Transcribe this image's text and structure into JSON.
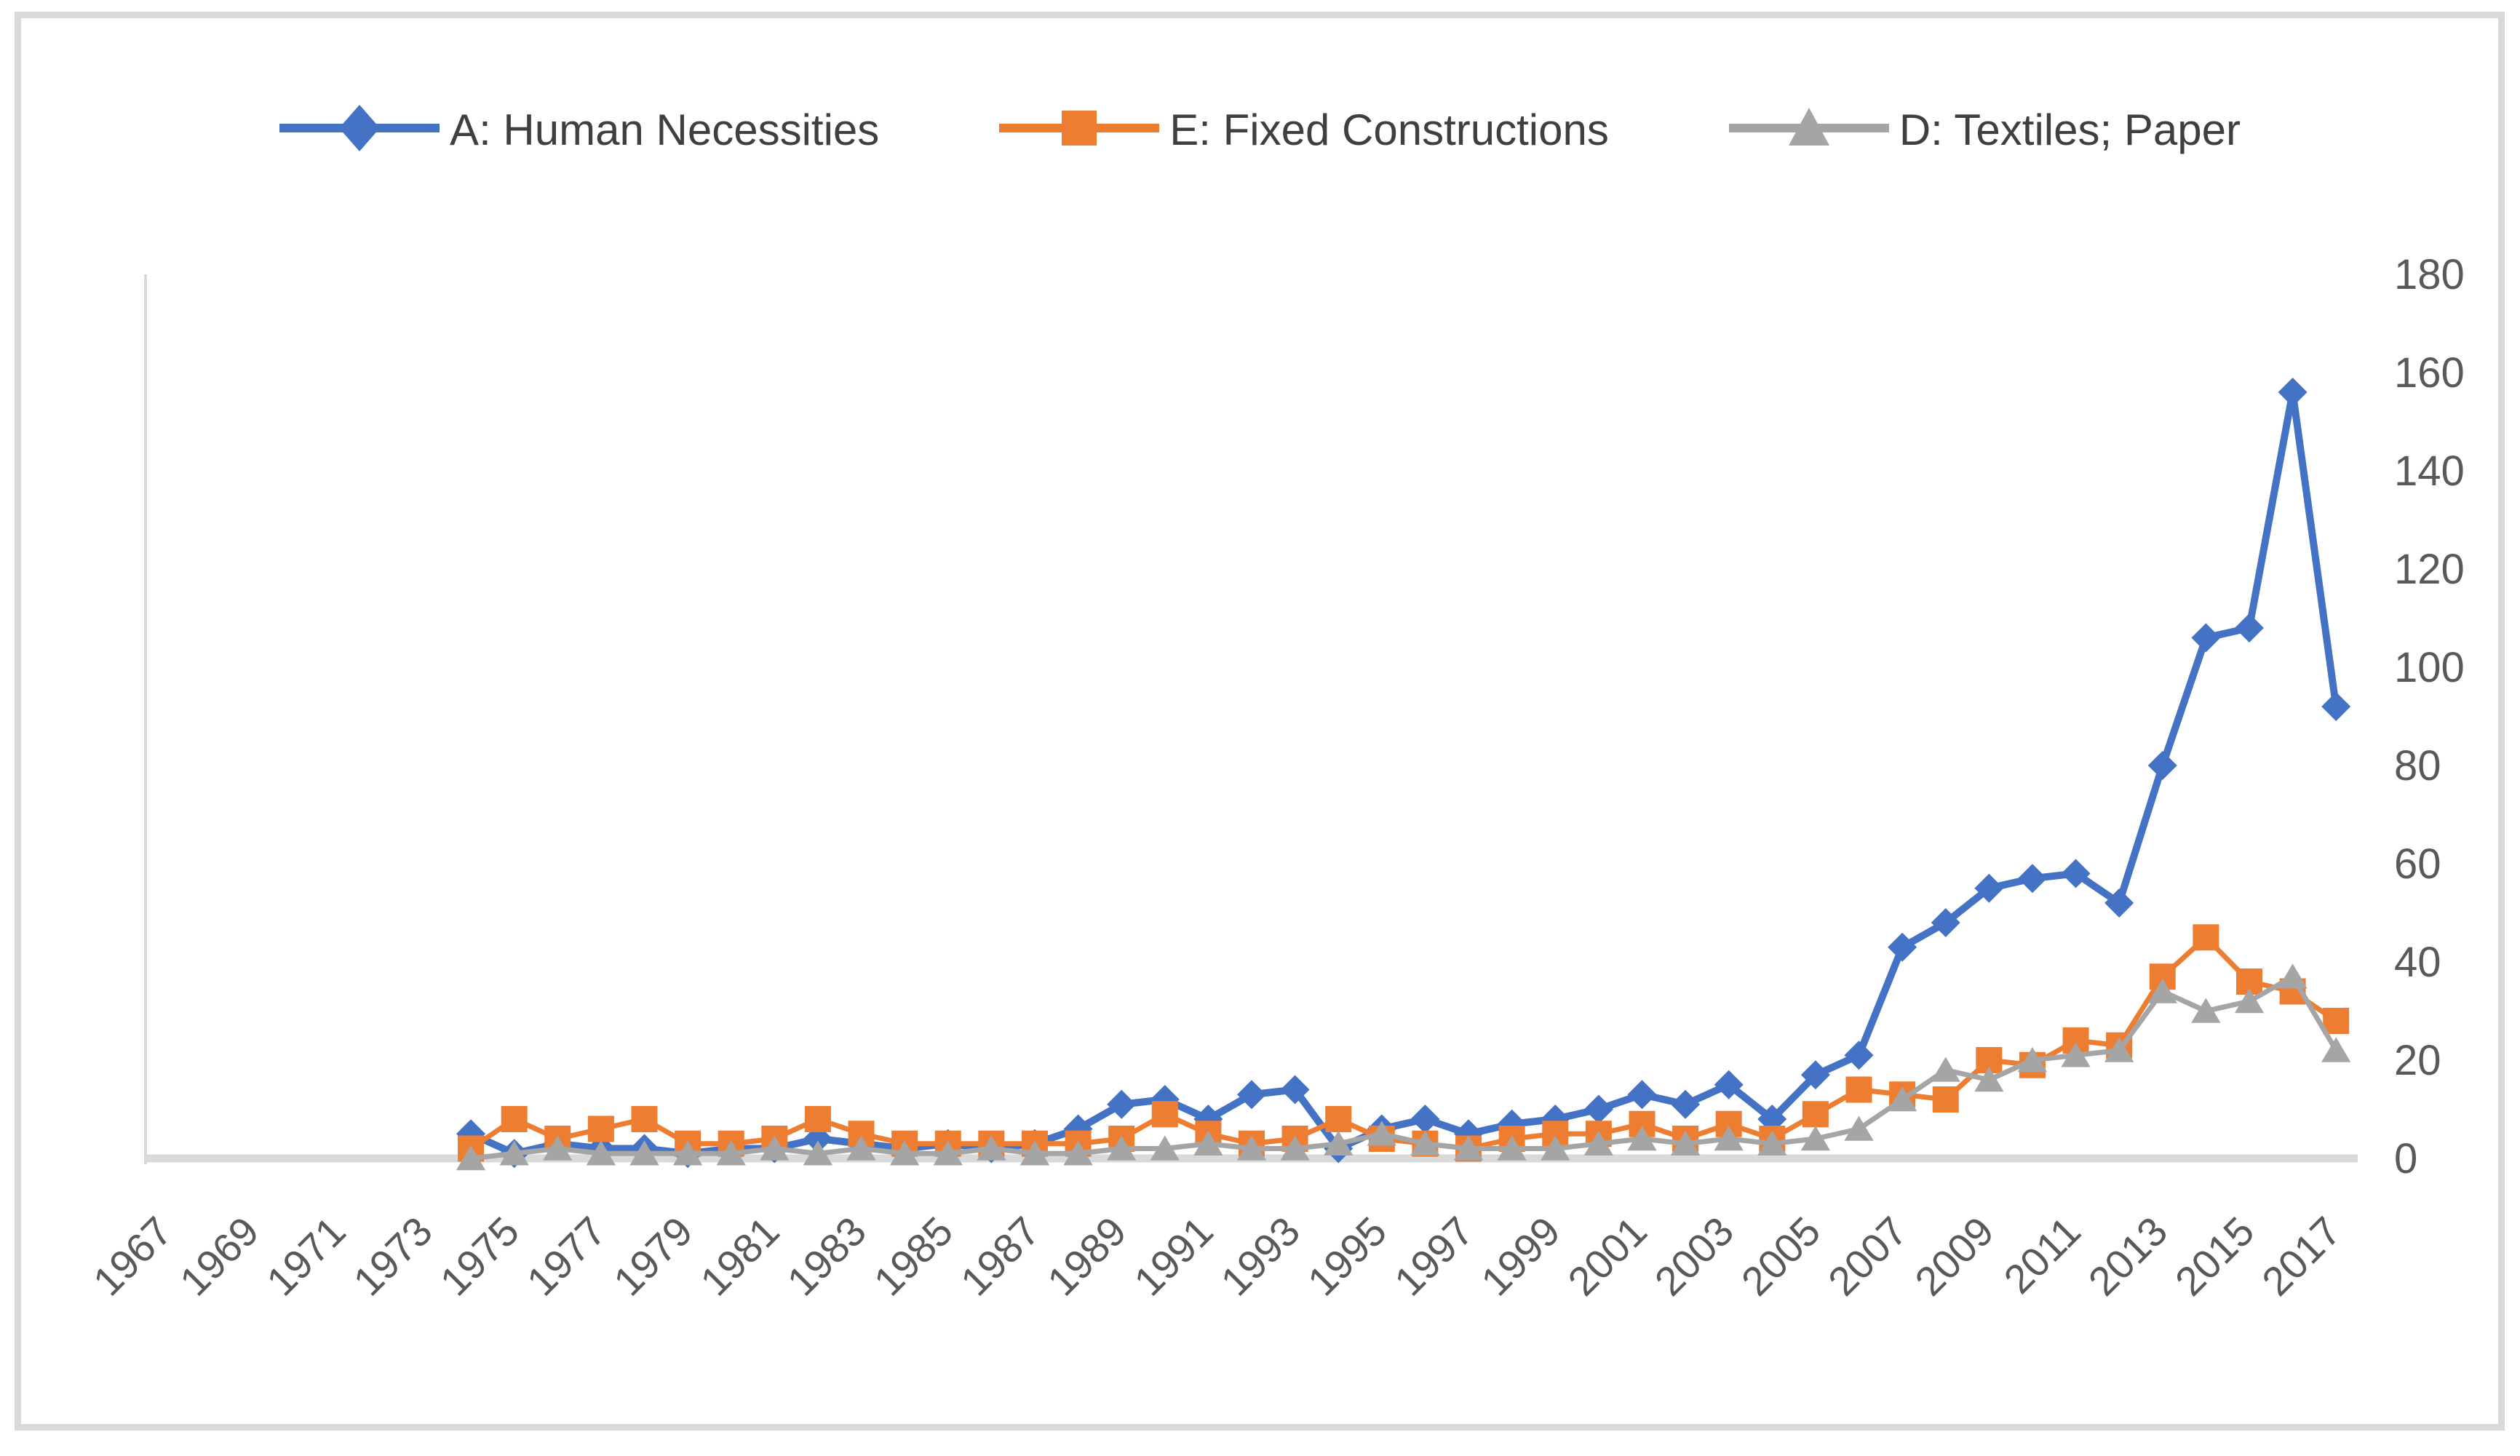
{
  "chart_data": {
    "type": "line",
    "title": "",
    "legend_position": "top",
    "grid": false,
    "axis_color": "#d9d9d9",
    "label_color": "#595959",
    "x_years": [
      1974,
      1975,
      1976,
      1977,
      1978,
      1979,
      1980,
      1981,
      1982,
      1983,
      1984,
      1985,
      1986,
      1987,
      1988,
      1989,
      1990,
      1991,
      1992,
      1993,
      1994,
      1995,
      1996,
      1997,
      1998,
      1999,
      2000,
      2001,
      2002,
      2003,
      2004,
      2005,
      2006,
      2007,
      2008,
      2009,
      2010,
      2011,
      2012,
      2013,
      2014,
      2015,
      2016,
      2017
    ],
    "x_axis": {
      "start": 1967,
      "end": 2017,
      "label_step": 2,
      "tick_labels": [
        "1967",
        "1969",
        "1971",
        "1973",
        "1975",
        "1977",
        "1979",
        "1981",
        "1983",
        "1985",
        "1987",
        "1989",
        "1991",
        "1993",
        "1995",
        "1997",
        "1999",
        "2001",
        "2003",
        "2005",
        "2007",
        "2009",
        "2011",
        "2013",
        "2015",
        "2017"
      ]
    },
    "y_axis": {
      "side": "right",
      "min": 0,
      "max": 180,
      "step": 20,
      "tick_labels": [
        "0",
        "20",
        "40",
        "60",
        "80",
        "100",
        "120",
        "140",
        "160",
        "180"
      ]
    },
    "series": [
      {
        "name": "A: Human Necessities",
        "color": "#4472C4",
        "marker": "diamond",
        "values": [
          5,
          1,
          3,
          2,
          2,
          1,
          2,
          2,
          4,
          3,
          2,
          3,
          2,
          3,
          6,
          11,
          12,
          8,
          13,
          14,
          2,
          6,
          8,
          5,
          7,
          8,
          10,
          13,
          11,
          15,
          8,
          17,
          21,
          43,
          48,
          55,
          57,
          58,
          52,
          80,
          106,
          108,
          156,
          92
        ]
      },
      {
        "name": "E: Fixed Constructions",
        "color": "#ED7D31",
        "marker": "square",
        "values": [
          2,
          8,
          4,
          6,
          8,
          3,
          3,
          4,
          8,
          5,
          3,
          3,
          3,
          3,
          3,
          4,
          9,
          5,
          3,
          4,
          8,
          4,
          3,
          2,
          4,
          5,
          5,
          7,
          4,
          7,
          4,
          9,
          14,
          13,
          12,
          20,
          19,
          24,
          23,
          37,
          45,
          36,
          34,
          28
        ]
      },
      {
        "name": "D: Textiles; Paper",
        "color": "#A5A5A5",
        "marker": "triangle",
        "values": [
          0,
          1,
          2,
          1,
          1,
          1,
          1,
          2,
          1,
          2,
          1,
          1,
          2,
          1,
          1,
          2,
          2,
          3,
          2,
          2,
          3,
          5,
          3,
          2,
          2,
          2,
          3,
          4,
          3,
          4,
          3,
          4,
          6,
          12,
          18,
          16,
          20,
          21,
          22,
          34,
          30,
          32,
          37,
          22
        ]
      }
    ]
  }
}
